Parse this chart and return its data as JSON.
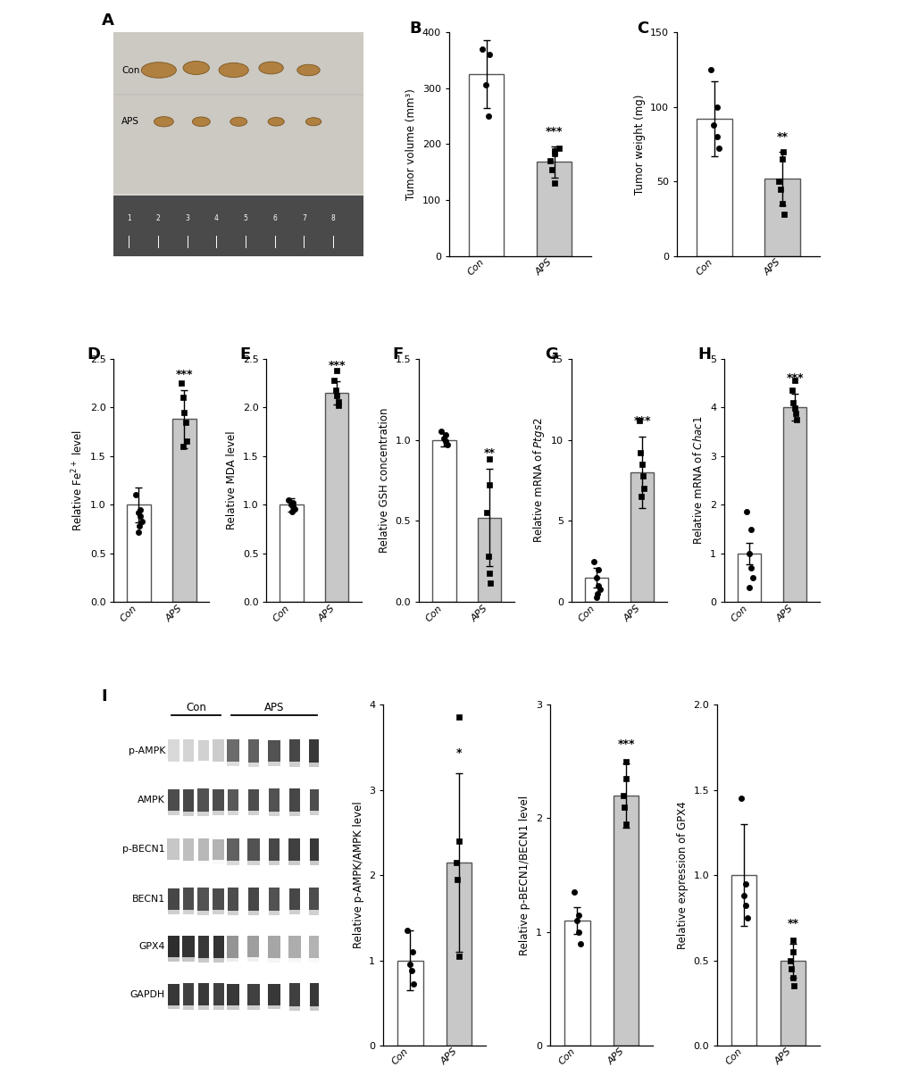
{
  "panels": {
    "B": {
      "title": "B",
      "ylabel": "Tumor volume (mm³)",
      "ylim": [
        0,
        400
      ],
      "yticks": [
        0,
        100,
        200,
        300,
        400
      ],
      "bar_means": [
        325,
        168
      ],
      "bar_errors": [
        60,
        28
      ],
      "categories": [
        "Con",
        "APS"
      ],
      "sig": "***",
      "dots_con": [
        370,
        360,
        305,
        250
      ],
      "dots_aps": [
        192,
        188,
        183,
        170,
        155,
        130
      ],
      "dot_shape_con": "o",
      "dot_shape_aps": "s"
    },
    "C": {
      "title": "C",
      "ylabel": "Tumor weight (mg)",
      "ylim": [
        0,
        150
      ],
      "yticks": [
        0,
        50,
        100,
        150
      ],
      "bar_means": [
        92,
        52
      ],
      "bar_errors": [
        25,
        18
      ],
      "categories": [
        "Con",
        "APS"
      ],
      "sig": "**",
      "dots_con": [
        125,
        100,
        88,
        80,
        72
      ],
      "dots_aps": [
        70,
        65,
        50,
        45,
        35,
        28
      ],
      "dot_shape_con": "o",
      "dot_shape_aps": "s"
    },
    "D": {
      "title": "D",
      "ylabel": "Relative Fe$^{2+}$ level",
      "ylim": [
        0.0,
        2.5
      ],
      "yticks": [
        0.0,
        0.5,
        1.0,
        1.5,
        2.0,
        2.5
      ],
      "bar_means": [
        1.0,
        1.88
      ],
      "bar_errors": [
        0.18,
        0.3
      ],
      "categories": [
        "Con",
        "APS"
      ],
      "sig": "***",
      "dots_con": [
        1.1,
        0.95,
        0.92,
        0.88,
        0.83,
        0.78,
        0.72
      ],
      "dots_aps": [
        2.25,
        2.1,
        1.95,
        1.85,
        1.65,
        1.6
      ],
      "dot_shape_con": "o",
      "dot_shape_aps": "s"
    },
    "E": {
      "title": "E",
      "ylabel": "Relative MDA level",
      "ylim": [
        0.0,
        2.5
      ],
      "yticks": [
        0.0,
        0.5,
        1.0,
        1.5,
        2.0,
        2.5
      ],
      "bar_means": [
        1.0,
        2.15
      ],
      "bar_errors": [
        0.07,
        0.12
      ],
      "categories": [
        "Con",
        "APS"
      ],
      "sig": "***",
      "dots_con": [
        1.05,
        1.02,
        1.0,
        0.98,
        0.96,
        0.93
      ],
      "dots_aps": [
        2.38,
        2.28,
        2.18,
        2.12,
        2.06,
        2.02
      ],
      "dot_shape_con": "o",
      "dot_shape_aps": "s"
    },
    "F": {
      "title": "F",
      "ylabel": "Relative GSH concentration",
      "ylim": [
        0.0,
        1.5
      ],
      "yticks": [
        0.0,
        0.5,
        1.0,
        1.5
      ],
      "bar_means": [
        1.0,
        0.52
      ],
      "bar_errors": [
        0.04,
        0.3
      ],
      "categories": [
        "Con",
        "APS"
      ],
      "sig": "**",
      "dots_con": [
        1.05,
        1.03,
        1.01,
        0.99,
        0.97
      ],
      "dots_aps": [
        0.88,
        0.72,
        0.55,
        0.28,
        0.18,
        0.12
      ],
      "dot_shape_con": "o",
      "dot_shape_aps": "s"
    },
    "G": {
      "title": "G",
      "ylabel": "Relative mRNA of $\\it{Ptgs2}$",
      "ylim": [
        0,
        15
      ],
      "yticks": [
        0,
        5,
        10,
        15
      ],
      "bar_means": [
        1.5,
        8.0
      ],
      "bar_errors": [
        0.6,
        2.2
      ],
      "categories": [
        "Con",
        "APS"
      ],
      "sig": "***",
      "dots_con": [
        2.5,
        2.0,
        1.5,
        1.0,
        0.8,
        0.5,
        0.3
      ],
      "dots_aps": [
        11.2,
        9.2,
        8.5,
        7.8,
        7.0,
        6.5
      ],
      "dot_shape_con": "o",
      "dot_shape_aps": "s"
    },
    "H": {
      "title": "H",
      "ylabel": "Relative mRNA of $\\it{Chac1}$",
      "ylim": [
        0,
        5
      ],
      "yticks": [
        0,
        1,
        2,
        3,
        4,
        5
      ],
      "bar_means": [
        1.0,
        4.0
      ],
      "bar_errors": [
        0.22,
        0.28
      ],
      "categories": [
        "Con",
        "APS"
      ],
      "sig": "***",
      "dots_con": [
        1.85,
        1.5,
        1.0,
        0.7,
        0.5,
        0.3
      ],
      "dots_aps": [
        4.55,
        4.35,
        4.1,
        3.98,
        3.88,
        3.75
      ],
      "dot_shape_con": "o",
      "dot_shape_aps": "s"
    },
    "I1": {
      "title": "",
      "ylabel": "Relative p-AMPK/AMPK level",
      "ylim": [
        0,
        4
      ],
      "yticks": [
        0,
        1,
        2,
        3,
        4
      ],
      "bar_means": [
        1.0,
        2.15
      ],
      "bar_errors": [
        0.35,
        1.05
      ],
      "categories": [
        "Con",
        "APS"
      ],
      "sig": "*",
      "dots_con": [
        1.35,
        1.1,
        0.95,
        0.88,
        0.72
      ],
      "dots_aps": [
        3.85,
        2.4,
        2.15,
        1.95,
        1.05
      ],
      "dot_shape_con": "o",
      "dot_shape_aps": "s"
    },
    "I2": {
      "title": "",
      "ylabel": "Relative p-BECN1/BECN1 level",
      "ylim": [
        0,
        3
      ],
      "yticks": [
        0,
        1,
        2,
        3
      ],
      "bar_means": [
        1.1,
        2.2
      ],
      "bar_errors": [
        0.12,
        0.28
      ],
      "categories": [
        "Con",
        "APS"
      ],
      "sig": "***",
      "dots_con": [
        1.35,
        1.15,
        1.1,
        1.0,
        0.9
      ],
      "dots_aps": [
        2.5,
        2.35,
        2.2,
        2.1,
        1.95
      ],
      "dot_shape_con": "o",
      "dot_shape_aps": "s"
    },
    "I3": {
      "title": "",
      "ylabel": "Relative expression of GPX4",
      "ylim": [
        0.0,
        2.0
      ],
      "yticks": [
        0.0,
        0.5,
        1.0,
        1.5,
        2.0
      ],
      "bar_means": [
        1.0,
        0.5
      ],
      "bar_errors": [
        0.3,
        0.1
      ],
      "categories": [
        "Con",
        "APS"
      ],
      "sig": "**",
      "dots_con": [
        1.45,
        0.95,
        0.88,
        0.82,
        0.75
      ],
      "dots_aps": [
        0.62,
        0.55,
        0.5,
        0.45,
        0.4,
        0.35
      ],
      "dot_shape_con": "o",
      "dot_shape_aps": "s"
    }
  },
  "bar_color_con": "white",
  "bar_color_aps": "#c8c8c8",
  "bar_edgecolor": "#555555",
  "dot_color": "black",
  "sig_fontsize": 9,
  "label_fontsize": 8.5,
  "tick_fontsize": 8,
  "panel_label_fontsize": 13
}
